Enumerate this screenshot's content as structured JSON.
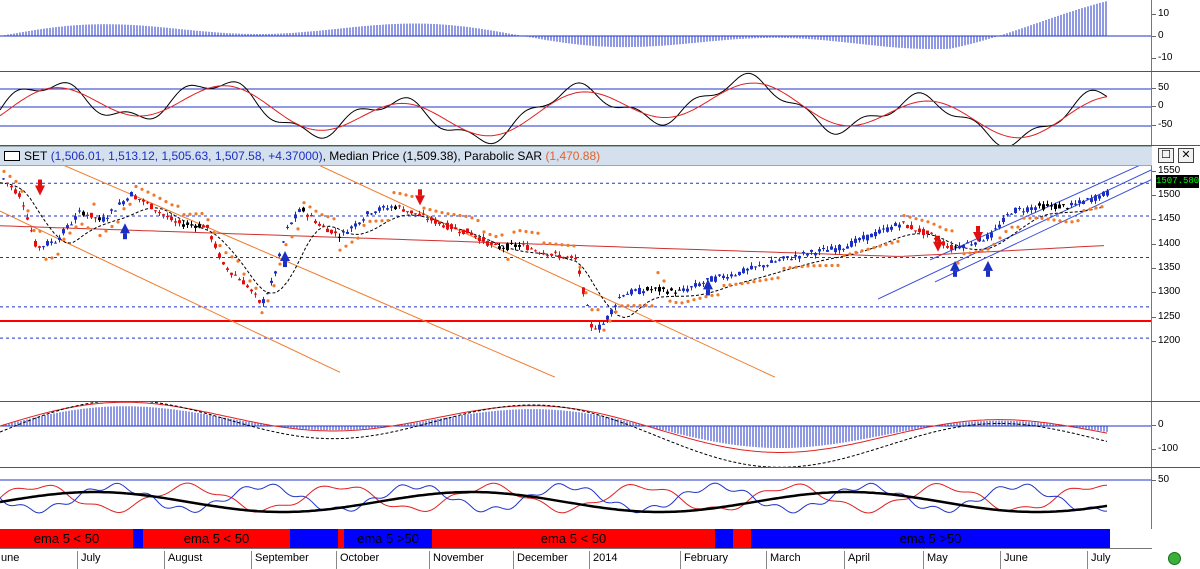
{
  "title": {
    "symbol": "SET",
    "ohlc": "(1,506.01, 1,513.12, 1,505.63, 1,507.58, +4.37000)",
    "median_label": "Median Price",
    "median_value": "(1,509.38)",
    "sar_label": "Parabolic SAR",
    "sar_value": "(1,470.88)",
    "sep1": ",",
    "sep2": ","
  },
  "window_buttons": {
    "maximize": "☐",
    "close": "✕"
  },
  "last_price_label": "1507.580",
  "axes": {
    "macd_ticks": [
      "10",
      "0",
      "-10"
    ],
    "stoch_ticks": [
      "50",
      "0",
      "-50"
    ],
    "price_ticks": [
      "1550",
      "1500",
      "1450",
      "1400",
      "1350",
      "1300",
      "1250",
      "1200"
    ],
    "osc_ticks": [
      "0",
      "-100"
    ],
    "rsi_ticks": [
      "50"
    ]
  },
  "status_segments": [
    {
      "label": "ema 5 < 50",
      "color": "#ff0000"
    },
    {
      "label": "",
      "color": "#0000ff"
    },
    {
      "label": "ema 5 < 50",
      "color": "#ff0000"
    },
    {
      "label": "",
      "color": "#0000ff"
    },
    {
      "label": "",
      "color": "#ff0000"
    },
    {
      "label": "ema 5 >50",
      "color": "#0000ff"
    },
    {
      "label": "ema 5 < 50",
      "color": "#ff0000"
    },
    {
      "label": "",
      "color": "#0000ff"
    },
    {
      "label": "",
      "color": "#ff0000"
    },
    {
      "label": "ema 5 >50",
      "color": "#0000ff"
    }
  ],
  "date_labels": [
    "une",
    "July",
    "August",
    "September",
    "October",
    "November",
    "December",
    "2014",
    "February",
    "March",
    "April",
    "May",
    "June",
    "July"
  ],
  "colors": {
    "bull": "#1c2fc4",
    "bear": "#e01010",
    "neutral": "#000000",
    "sar": "#f07a2a",
    "channel": "#f07a2a",
    "support": "#ff0000",
    "uptrend": "#3a4fd8",
    "ema_long": "#d03030"
  }
}
